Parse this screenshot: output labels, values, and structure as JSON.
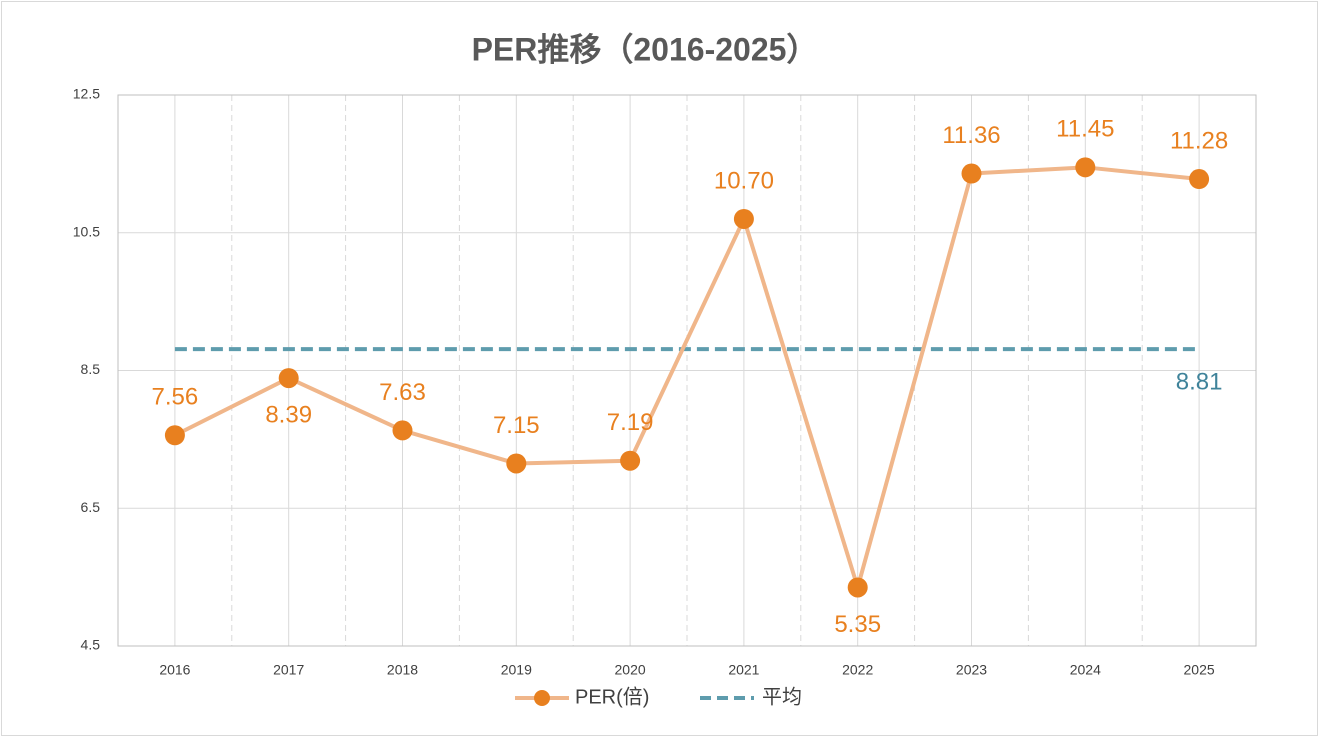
{
  "chart_data": {
    "type": "line",
    "title": "PER推移（2016-2025）",
    "categories": [
      "2016",
      "2017",
      "2018",
      "2019",
      "2020",
      "2021",
      "2022",
      "2023",
      "2024",
      "2025"
    ],
    "series": [
      {
        "name": "PER(倍)",
        "color": "#e8801f",
        "line_color": "#f0b68a",
        "values": [
          7.56,
          8.39,
          7.63,
          7.15,
          7.19,
          10.7,
          5.35,
          11.36,
          11.45,
          11.28
        ],
        "value_labels": [
          "7.56",
          "8.39",
          "7.63",
          "7.15",
          "7.19",
          "10.70",
          "5.35",
          "11.36",
          "11.45",
          "11.28"
        ]
      }
    ],
    "average": {
      "name": "平均",
      "value": 8.81,
      "color": "#5e9cad",
      "label_color": "#3f839a"
    },
    "ylim": [
      4.5,
      12.5
    ],
    "yticks": [
      4.5,
      6.5,
      8.5,
      10.5,
      12.5
    ],
    "grid": true,
    "legend": "bottom"
  }
}
